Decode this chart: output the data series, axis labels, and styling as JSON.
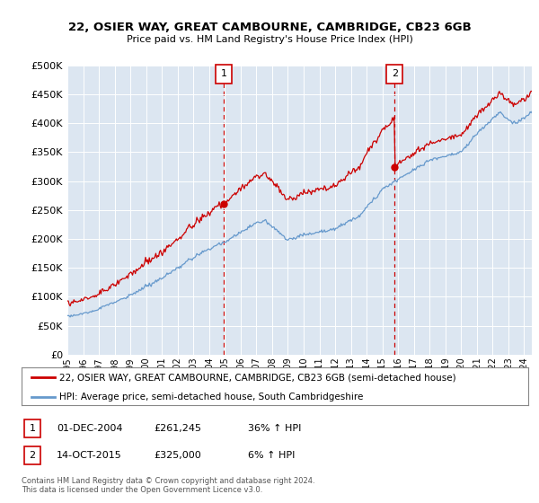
{
  "title1": "22, OSIER WAY, GREAT CAMBOURNE, CAMBRIDGE, CB23 6GB",
  "title2": "Price paid vs. HM Land Registry's House Price Index (HPI)",
  "legend_line1": "22, OSIER WAY, GREAT CAMBOURNE, CAMBRIDGE, CB23 6GB (semi-detached house)",
  "legend_line2": "HPI: Average price, semi-detached house, South Cambridgeshire",
  "annotation1_date": "01-DEC-2004",
  "annotation1_price": "£261,245",
  "annotation1_hpi": "36% ↑ HPI",
  "annotation2_date": "14-OCT-2015",
  "annotation2_price": "£325,000",
  "annotation2_hpi": "6% ↑ HPI",
  "footnote": "Contains HM Land Registry data © Crown copyright and database right 2024.\nThis data is licensed under the Open Government Licence v3.0.",
  "price_color": "#cc0000",
  "hpi_color": "#6699cc",
  "plot_bg_color": "#dce6f1",
  "ylim": [
    0,
    500000
  ],
  "yticks": [
    0,
    50000,
    100000,
    150000,
    200000,
    250000,
    300000,
    350000,
    400000,
    450000,
    500000
  ],
  "sale1_x": 2004.92,
  "sale1_y": 261245,
  "sale2_x": 2015.79,
  "sale2_y": 325000,
  "xmin": 1995,
  "xmax": 2024.5
}
